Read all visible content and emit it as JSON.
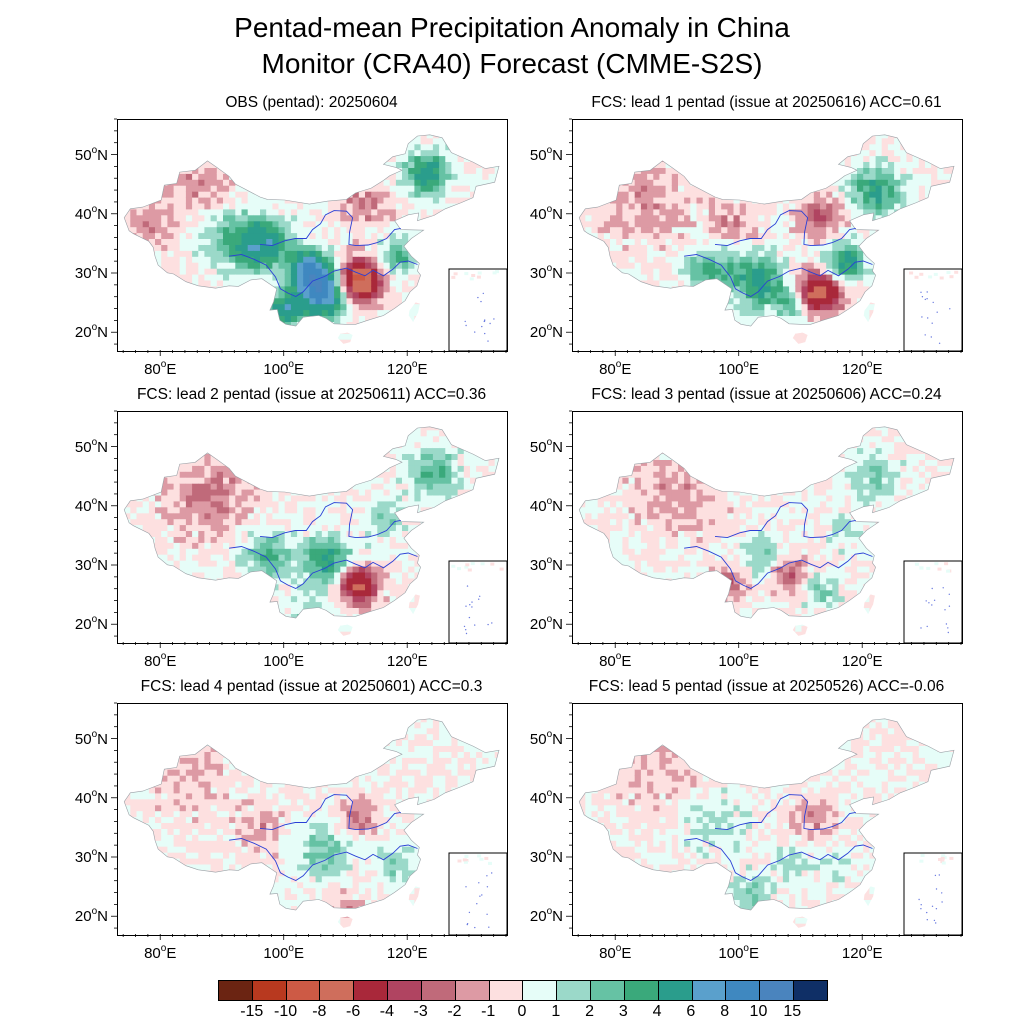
{
  "title_line1": "Pentad-mean Precipitation Anomaly in China",
  "title_line2": "Monitor (CRA40)  Forecast (CMME-S2S)",
  "lat_ticks": [
    50,
    40,
    30,
    20
  ],
  "lat_suffix": "N",
  "lon_ticks": [
    80,
    100,
    120
  ],
  "lon_suffix": "E",
  "degree_symbol": "o",
  "panels": [
    {
      "title": "OBS (pentad): 20250604",
      "pattern": "obs"
    },
    {
      "title": "FCS: lead 1 pentad (issue at 20250616) ACC=0.61",
      "pattern": "lead1"
    },
    {
      "title": "FCS: lead 2 pentad (issue at 20250611) ACC=0.36",
      "pattern": "lead2"
    },
    {
      "title": "FCS: lead 3 pentad (issue at 20250606) ACC=0.24",
      "pattern": "lead3"
    },
    {
      "title": "FCS: lead 4 pentad (issue at 20250601) ACC=0.3",
      "pattern": "lead4"
    },
    {
      "title": "FCS: lead 5 pentad (issue at 20250526) ACC=-0.06",
      "pattern": "lead5"
    }
  ],
  "colorbar": {
    "labels": [
      "-15",
      "-10",
      "-8",
      "-6",
      "-4",
      "-3",
      "-2",
      "-1",
      "0",
      "1",
      "2",
      "3",
      "4",
      "6",
      "8",
      "10",
      "15"
    ],
    "colors": [
      "#6b2412",
      "#b8391f",
      "#cd5a45",
      "#cf6e5c",
      "#a9283a",
      "#b04461",
      "#c06a7a",
      "#dd9aa4",
      "#fde0e0",
      "#e6fdf8",
      "#9bd9c9",
      "#66c2a4",
      "#3aa97b",
      "#2a9d8c",
      "#5aa0cc",
      "#3f88c0",
      "#4a84be",
      "#0f2f66"
    ]
  }
}
